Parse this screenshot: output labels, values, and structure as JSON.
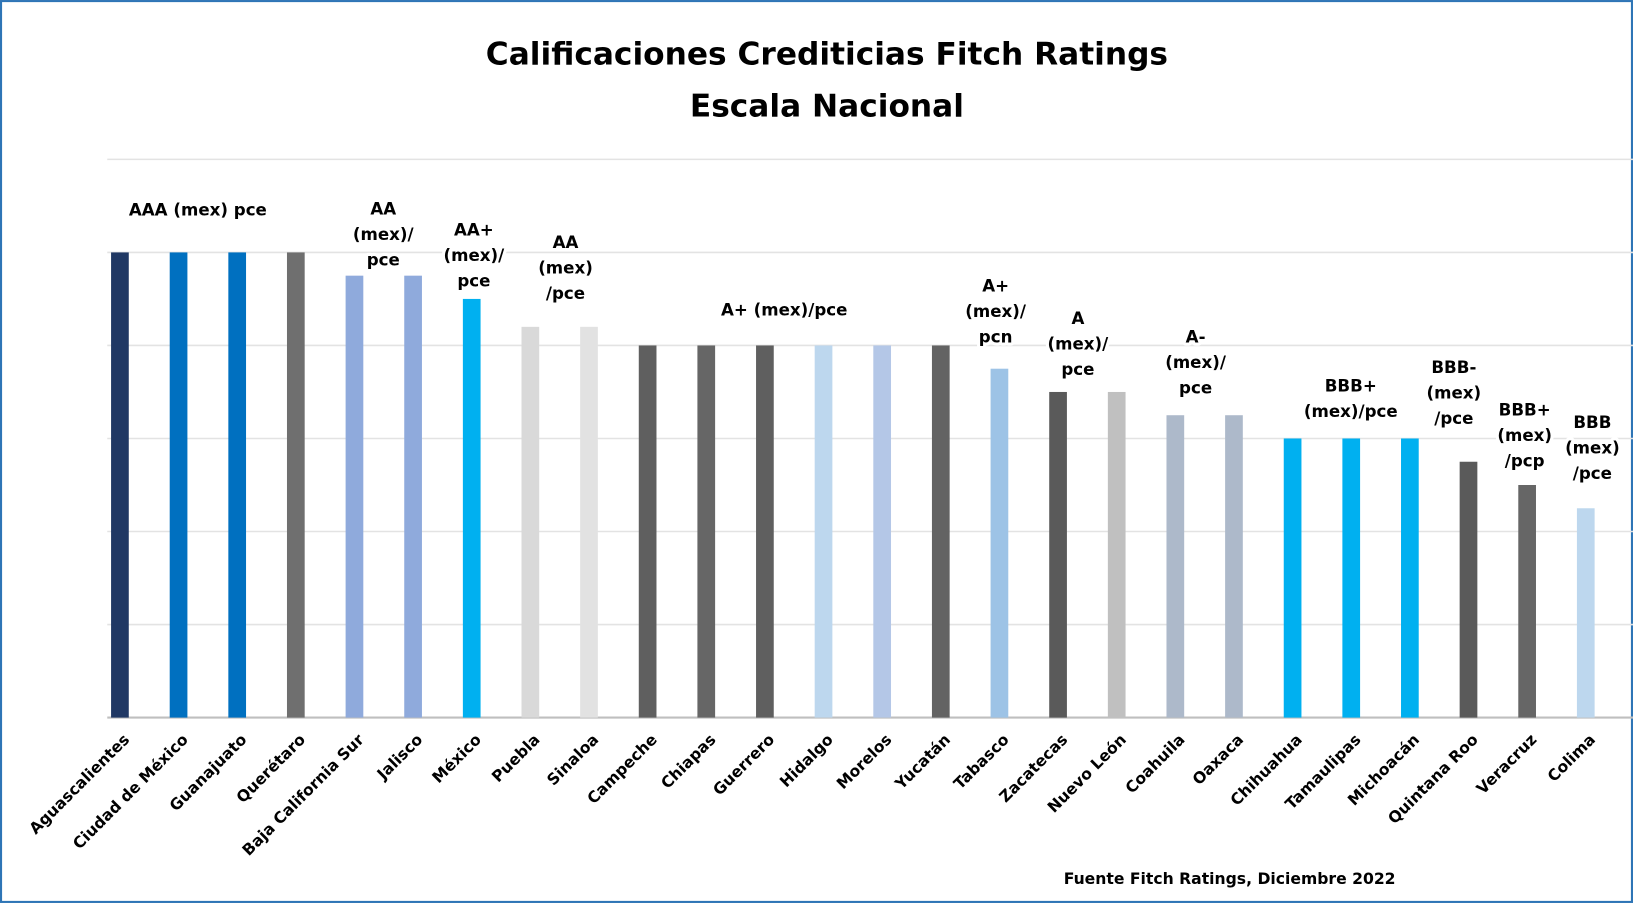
{
  "chart_data": {
    "type": "bar",
    "title": [
      "Calificaciones  Crediticias  Fitch Ratings",
      "Escala  Nacional"
    ],
    "categories": [
      "Aguascalientes",
      "Ciudad de México",
      "Guanajuato",
      "Querétaro",
      "Baja California Sur",
      "Jalisco",
      "México",
      "Puebla",
      "Sinaloa",
      "Campeche",
      "Chiapas",
      "Guerrero",
      "Hidalgo",
      "Morelos",
      "Yucatán",
      "Tabasco",
      "Zacatecas",
      "Nuevo León",
      "Coahuila",
      "Oaxaca",
      "Chihuahua",
      "Tamaulipas",
      "Michoacán",
      "Quintana Roo",
      "Veracruz",
      "Colima"
    ],
    "values": [
      5,
      5,
      5,
      5,
      4.75,
      4.75,
      4.5,
      4.2,
      4.2,
      4,
      4,
      4,
      4,
      4,
      4,
      3.75,
      3.5,
      3.5,
      3.25,
      3.25,
      3,
      3,
      3,
      2.75,
      2.5,
      2.25
    ],
    "colors": [
      "#203864",
      "#0070c0",
      "#0070c0",
      "#6f6f6f",
      "#8faadc",
      "#8faadc",
      "#00b0f0",
      "#d9d9d9",
      "#e2e2e2",
      "#5f5f5f",
      "#666666",
      "#5f5f5f",
      "#bdd7ee",
      "#b4c7e7",
      "#636363",
      "#9dc3e6",
      "#5a5a5a",
      "#c0c0c0",
      "#adb9ca",
      "#adb9ca",
      "#00b0f0",
      "#00b0f0",
      "#00b0f0",
      "#5a5a5a",
      "#666666",
      "#bdd7ee"
    ],
    "ylim": [
      0,
      6
    ],
    "yticks": [
      0,
      1,
      2,
      3,
      4,
      5,
      6
    ],
    "grid": true,
    "annotations": [
      [
        "AAA (mex) pce"
      ],
      [
        "AA",
        "(mex)/",
        "pce"
      ],
      [
        "AA+",
        "(mex)/",
        "pce"
      ],
      [
        "AA",
        "(mex)",
        "/pce"
      ],
      [
        "A+ (mex)/pce"
      ],
      [
        "A+",
        "(mex)/",
        "pcn"
      ],
      [
        "A",
        "(mex)/",
        "pce"
      ],
      [
        "A-",
        "(mex)/",
        "pce"
      ],
      [
        "BBB+",
        "(mex)/pce"
      ],
      [
        "BBB-",
        "(mex)",
        "/pce"
      ],
      [
        "BBB+",
        "(mex)",
        "/pcp"
      ],
      [
        "BBB",
        "(mex)",
        "/pce"
      ]
    ],
    "source": "Fuente Fitch Ratings, Diciembre 2022"
  }
}
